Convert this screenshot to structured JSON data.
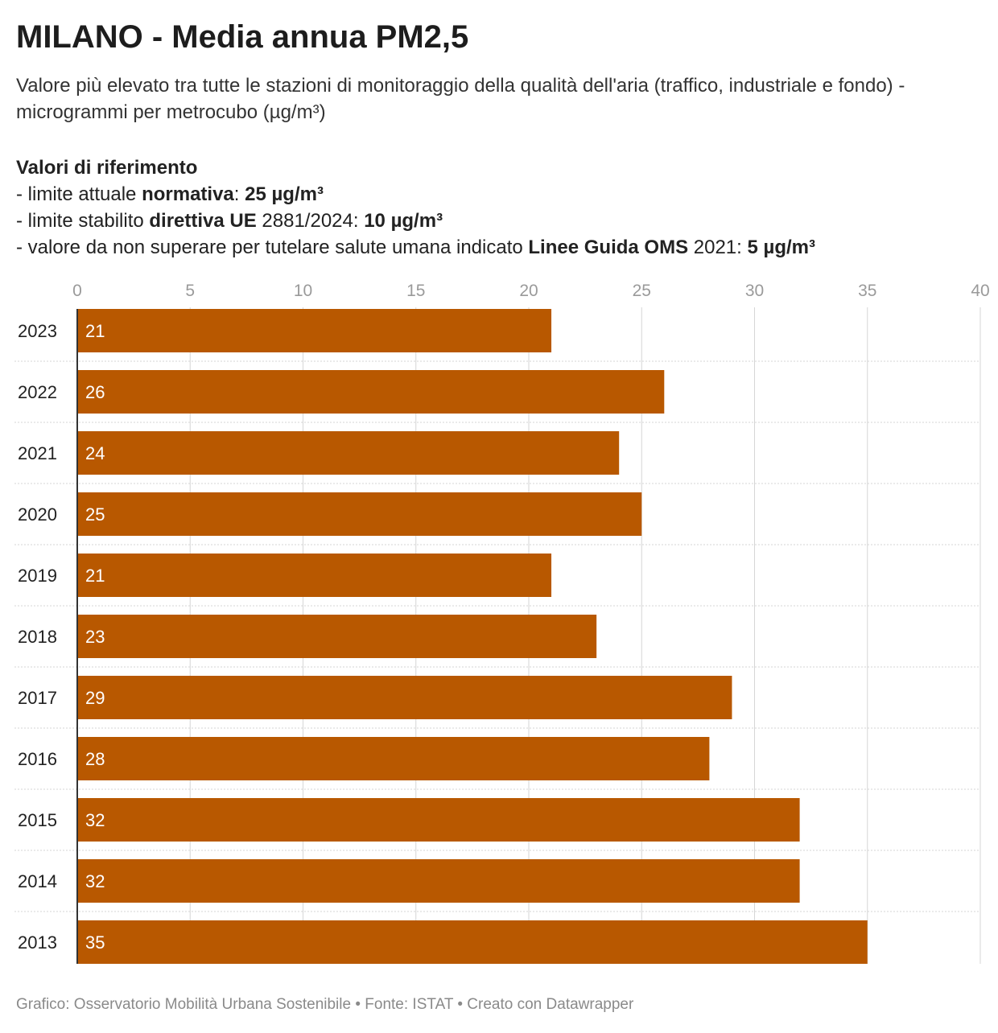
{
  "header": {
    "title": "MILANO - Media annua PM2,5",
    "subtitle": "Valore più elevato tra tutte le stazioni di monitoraggio della qualità dell'aria (traffico, industriale e fondo) - microgrammi per metrocubo (µg/m³)"
  },
  "references": {
    "heading": "Valori di riferimento",
    "line1": {
      "pre": "- limite attuale ",
      "bold1": "normativa",
      "mid": ": ",
      "bold2": "25 µg/m³"
    },
    "line2": {
      "pre": "- limite stabilito ",
      "bold1": "direttiva UE",
      "mid": " 2881/2024: ",
      "bold2": "10 µg/m³"
    },
    "line3": {
      "pre": "- valore da non superare per tutelare salute umana indicato ",
      "bold1": "Linee Guida OMS",
      "mid": " 2021: ",
      "bold2": "5 µg/m³"
    }
  },
  "footer": {
    "credit": "Grafico: Osservatorio Mobilità Urbana Sostenibile • Fonte: ISTAT • Creato con Datawrapper"
  },
  "colors": {
    "bar": "#b85800",
    "grid": "#d6d6d6",
    "tick": "#9a9a9a"
  },
  "chart_data": {
    "type": "bar",
    "orientation": "horizontal",
    "categories": [
      "2023",
      "2022",
      "2021",
      "2020",
      "2019",
      "2018",
      "2017",
      "2016",
      "2015",
      "2014",
      "2013"
    ],
    "values": [
      21,
      26,
      24,
      25,
      21,
      23,
      29,
      28,
      32,
      32,
      35
    ],
    "xlim": [
      0,
      40
    ],
    "xticks": [
      0,
      5,
      10,
      15,
      20,
      25,
      30,
      35,
      40
    ],
    "grid": true,
    "axis_position": "top"
  }
}
